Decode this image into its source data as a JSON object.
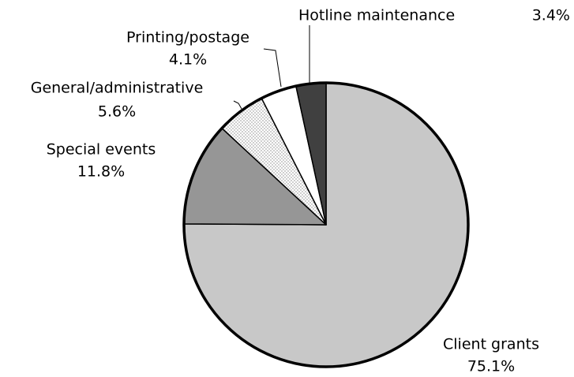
{
  "chart_data": {
    "type": "pie",
    "categories": [
      "Client grants",
      "Special events",
      "General/administrative",
      "Printing/postage",
      "Hotline maintenance"
    ],
    "values": [
      75.1,
      11.8,
      5.6,
      4.1,
      3.4
    ],
    "value_labels": [
      "75.1%",
      "11.8%",
      "5.6%",
      "4.1%",
      "3.4%"
    ],
    "colors": [
      "#c8c8c8",
      "#969696",
      "#ffffff",
      "#ffffff",
      "#404040"
    ],
    "dotted": [
      false,
      false,
      true,
      false,
      false
    ],
    "start_angle": 0,
    "direction": "clockwise"
  }
}
